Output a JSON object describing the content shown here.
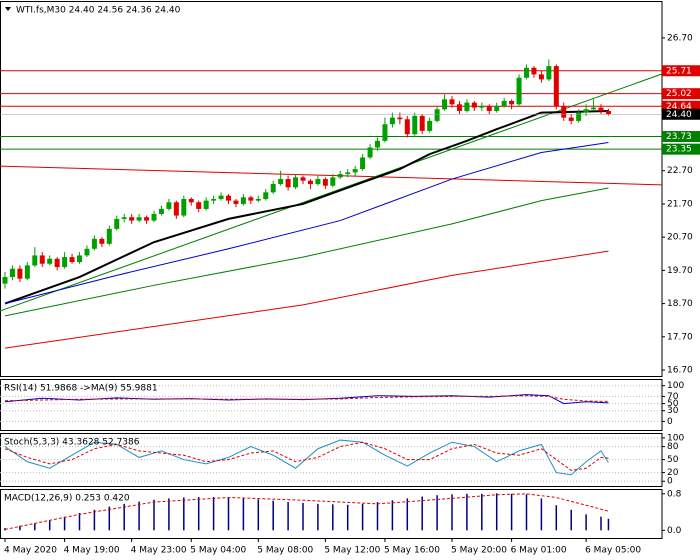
{
  "chart_data": [
    {
      "type": "candlestick",
      "title": "WTI.fs,M30  24.40 24.56 24.36 24.40",
      "categories": [
        "4 May 2020",
        null,
        null,
        null,
        null,
        null,
        null,
        null,
        "4 May 19:00",
        null,
        null,
        null,
        null,
        null,
        null,
        null,
        null,
        "4 May 23:00",
        null,
        null,
        null,
        null,
        null,
        null,
        null,
        "5 May 04:00",
        null,
        null,
        null,
        null,
        null,
        null,
        null,
        null,
        "5 May 08:00",
        null,
        null,
        null,
        null,
        null,
        null,
        null,
        null,
        "5 May 12:00",
        null,
        null,
        null,
        null,
        null,
        null,
        null,
        "5 May 16:00",
        null,
        null,
        null,
        null,
        null,
        null,
        null,
        null,
        "5 May 20:00",
        null,
        null,
        null,
        null,
        null,
        null,
        null,
        "6 May 01:00",
        null,
        null,
        null,
        null,
        null,
        null,
        null,
        null,
        null,
        "6 May 05:00",
        null,
        null,
        null
      ],
      "candles": [
        [
          19.3,
          19.65,
          19.15,
          19.5
        ],
        [
          19.5,
          19.85,
          19.4,
          19.75
        ],
        [
          19.75,
          19.85,
          19.35,
          19.45
        ],
        [
          19.45,
          19.95,
          19.4,
          19.85
        ],
        [
          19.85,
          20.4,
          19.8,
          20.15
        ],
        [
          20.15,
          20.25,
          19.8,
          19.9
        ],
        [
          19.9,
          20.15,
          19.85,
          20.05
        ],
        [
          20.05,
          20.1,
          19.7,
          19.8
        ],
        [
          19.8,
          20.25,
          19.75,
          20.1
        ],
        [
          20.1,
          20.2,
          19.9,
          19.95
        ],
        [
          19.95,
          20.25,
          19.9,
          20.15
        ],
        [
          20.15,
          20.45,
          20.1,
          20.35
        ],
        [
          20.35,
          20.75,
          20.3,
          20.65
        ],
        [
          20.65,
          20.7,
          20.4,
          20.5
        ],
        [
          20.5,
          21.05,
          20.45,
          20.95
        ],
        [
          20.95,
          21.35,
          20.9,
          21.25
        ],
        [
          21.25,
          21.4,
          21.15,
          21.3
        ],
        [
          21.3,
          21.4,
          21.1,
          21.2
        ],
        [
          21.2,
          21.4,
          21.15,
          21.3
        ],
        [
          21.3,
          21.35,
          21.1,
          21.2
        ],
        [
          21.2,
          21.5,
          21.15,
          21.4
        ],
        [
          21.4,
          21.65,
          21.35,
          21.55
        ],
        [
          21.55,
          21.85,
          21.5,
          21.75
        ],
        [
          21.75,
          21.8,
          21.25,
          21.35
        ],
        [
          21.35,
          21.95,
          21.3,
          21.85
        ],
        [
          21.85,
          21.9,
          21.65,
          21.75
        ],
        [
          21.75,
          21.8,
          21.45,
          21.55
        ],
        [
          21.55,
          21.9,
          21.5,
          21.8
        ],
        [
          21.8,
          21.95,
          21.7,
          21.85
        ],
        [
          21.85,
          22.05,
          21.8,
          21.95
        ],
        [
          21.95,
          22.0,
          21.7,
          21.8
        ],
        [
          21.8,
          21.85,
          21.6,
          21.7
        ],
        [
          21.7,
          22.0,
          21.65,
          21.9
        ],
        [
          21.9,
          21.95,
          21.7,
          21.8
        ],
        [
          21.8,
          21.95,
          21.75,
          21.85
        ],
        [
          21.85,
          22.15,
          21.8,
          22.05
        ],
        [
          22.05,
          22.4,
          22.0,
          22.3
        ],
        [
          22.3,
          22.7,
          22.25,
          22.45
        ],
        [
          22.45,
          22.55,
          22.1,
          22.2
        ],
        [
          22.2,
          22.6,
          22.15,
          22.5
        ],
        [
          22.5,
          22.55,
          22.3,
          22.4
        ],
        [
          22.4,
          22.45,
          22.15,
          22.3
        ],
        [
          22.3,
          22.55,
          22.25,
          22.45
        ],
        [
          22.45,
          22.5,
          22.15,
          22.25
        ],
        [
          22.25,
          22.6,
          22.2,
          22.5
        ],
        [
          22.5,
          22.7,
          22.45,
          22.6
        ],
        [
          22.6,
          22.75,
          22.5,
          22.65
        ],
        [
          22.65,
          22.85,
          22.55,
          22.75
        ],
        [
          22.75,
          23.2,
          22.7,
          23.1
        ],
        [
          23.1,
          23.5,
          23.05,
          23.4
        ],
        [
          23.4,
          23.7,
          23.3,
          23.6
        ],
        [
          23.6,
          24.3,
          23.55,
          24.1
        ],
        [
          24.1,
          24.45,
          24.0,
          24.3
        ],
        [
          24.3,
          24.45,
          24.1,
          24.25
        ],
        [
          24.25,
          24.35,
          23.7,
          23.8
        ],
        [
          23.8,
          24.45,
          23.75,
          24.35
        ],
        [
          24.35,
          24.4,
          23.8,
          23.9
        ],
        [
          23.9,
          24.3,
          23.85,
          24.2
        ],
        [
          24.2,
          24.65,
          24.15,
          24.55
        ],
        [
          24.55,
          25.0,
          24.5,
          24.85
        ],
        [
          24.85,
          24.95,
          24.6,
          24.7
        ],
        [
          24.7,
          24.8,
          24.4,
          24.5
        ],
        [
          24.5,
          24.85,
          24.45,
          24.75
        ],
        [
          24.75,
          24.8,
          24.5,
          24.6
        ],
        [
          24.6,
          24.75,
          24.5,
          24.65
        ],
        [
          24.65,
          24.7,
          24.4,
          24.5
        ],
        [
          24.5,
          24.75,
          24.45,
          24.65
        ],
        [
          24.65,
          24.9,
          24.6,
          24.8
        ],
        [
          24.8,
          24.85,
          24.55,
          24.7
        ],
        [
          24.7,
          25.6,
          24.65,
          25.5
        ],
        [
          25.5,
          25.9,
          25.45,
          25.8
        ],
        [
          25.8,
          25.85,
          25.5,
          25.6
        ],
        [
          25.6,
          25.7,
          25.35,
          25.45
        ],
        [
          25.45,
          26.05,
          25.4,
          25.85
        ],
        [
          25.85,
          25.9,
          24.55,
          24.65
        ],
        [
          24.65,
          24.75,
          24.2,
          24.3
        ],
        [
          24.3,
          24.4,
          24.1,
          24.2
        ],
        [
          24.2,
          24.55,
          24.15,
          24.45
        ],
        [
          24.45,
          24.7,
          24.35,
          24.55
        ],
        [
          24.55,
          24.85,
          24.5,
          24.6
        ],
        [
          24.6,
          24.7,
          24.4,
          24.5
        ],
        [
          24.5,
          24.56,
          24.36,
          24.4
        ]
      ],
      "up_color": "#00a000",
      "down_color": "#e00000",
      "ylim": [
        16.52,
        27.78
      ],
      "yticks": [
        {
          "value": 26.7,
          "label": "26.70"
        },
        {
          "value": 22.7,
          "label": "22.70"
        },
        {
          "value": 21.7,
          "label": "21.70"
        },
        {
          "value": 20.7,
          "label": "20.70"
        },
        {
          "value": 19.7,
          "label": "19.70"
        },
        {
          "value": 18.7,
          "label": "18.70"
        },
        {
          "value": 17.7,
          "label": "17.70"
        },
        {
          "value": 16.7,
          "label": "16.70"
        }
      ],
      "levels": [
        {
          "value": 25.71,
          "label": "25.71",
          "color": "#e00000"
        },
        {
          "value": 25.02,
          "label": "25.02",
          "color": "#e00000"
        },
        {
          "value": 24.64,
          "label": "24.64",
          "color": "#e00000"
        },
        {
          "value": 23.73,
          "label": "23.73",
          "color": "#008000"
        },
        {
          "value": 23.35,
          "label": "23.35",
          "color": "#008000"
        }
      ],
      "current_price": {
        "value": 24.4,
        "label": "24.40",
        "color": "#000000"
      },
      "moving_averages": [
        {
          "color": "#000000",
          "width": 2,
          "x": [
            0,
            10,
            20,
            30,
            40,
            48,
            53,
            57,
            62,
            66,
            72,
            81
          ],
          "values": [
            18.7,
            19.5,
            20.55,
            21.25,
            21.7,
            22.35,
            22.75,
            23.2,
            23.6,
            23.95,
            24.45,
            24.5
          ]
        },
        {
          "color": "#0000c8",
          "width": 1,
          "x": [
            0,
            15,
            30,
            45,
            60,
            72,
            81
          ],
          "values": [
            18.7,
            19.55,
            20.35,
            21.2,
            22.45,
            23.25,
            23.55
          ]
        },
        {
          "color": "#008000",
          "width": 1,
          "x": [
            0,
            20,
            40,
            60,
            72,
            81
          ],
          "values": [
            18.33,
            19.25,
            20.1,
            21.1,
            21.8,
            22.18
          ]
        },
        {
          "color": "#e00000",
          "width": 1,
          "x": [
            0,
            40,
            60,
            81
          ],
          "values": [
            17.36,
            18.66,
            19.55,
            20.28
          ]
        }
      ],
      "trendlines": [
        {
          "color": "#e00000",
          "x": [
            -1,
            89
          ],
          "values": [
            22.84,
            22.27
          ]
        },
        {
          "color": "#008000",
          "x": [
            -1,
            89
          ],
          "values": [
            18.45,
            25.68
          ]
        }
      ]
    },
    {
      "type": "line",
      "title": "RSI(14) 51.9868 ->MA(9) 55.9881",
      "ylim": [
        -24,
        116
      ],
      "yticks": [
        100,
        70,
        50,
        30,
        0
      ],
      "grid": true,
      "series": [
        {
          "color": "#0000c8",
          "dashed": false,
          "x": [
            0,
            5,
            10,
            15,
            20,
            25,
            30,
            35,
            40,
            45,
            50,
            55,
            60,
            65,
            70,
            73,
            75,
            78,
            81
          ],
          "values": [
            55,
            65,
            60,
            66,
            62,
            64,
            60,
            63,
            61,
            65,
            72,
            70,
            72,
            68,
            75,
            72,
            50,
            55,
            52
          ]
        },
        {
          "color": "#e00000",
          "dashed": true,
          "x": [
            0,
            5,
            10,
            15,
            20,
            25,
            30,
            35,
            40,
            45,
            50,
            55,
            60,
            65,
            70,
            73,
            75,
            78,
            81
          ],
          "values": [
            58,
            60,
            62,
            63,
            63,
            63,
            62,
            62,
            62,
            63,
            67,
            69,
            70,
            70,
            72,
            70,
            62,
            57,
            56
          ]
        }
      ]
    },
    {
      "type": "line",
      "title": "Stoch(5,3,3) 43.3628 52.7386",
      "ylim": [
        -11,
        109
      ],
      "yticks": [
        100,
        80,
        50,
        20,
        0
      ],
      "grid": true,
      "series": [
        {
          "color": "#1e90c8",
          "dashed": false,
          "x": [
            0,
            3,
            6,
            9,
            12,
            15,
            18,
            21,
            24,
            27,
            30,
            33,
            36,
            39,
            42,
            45,
            48,
            51,
            54,
            57,
            60,
            63,
            66,
            69,
            72,
            74,
            76,
            78,
            80,
            81
          ],
          "values": [
            80,
            45,
            30,
            60,
            90,
            85,
            55,
            70,
            50,
            40,
            55,
            80,
            60,
            30,
            75,
            95,
            90,
            60,
            35,
            65,
            90,
            80,
            45,
            70,
            85,
            20,
            15,
            45,
            70,
            43
          ]
        },
        {
          "color": "#e00000",
          "dashed": true,
          "x": [
            0,
            3,
            6,
            9,
            12,
            15,
            18,
            21,
            24,
            27,
            30,
            33,
            36,
            39,
            42,
            45,
            48,
            51,
            54,
            57,
            60,
            63,
            66,
            69,
            72,
            74,
            76,
            78,
            80,
            81
          ],
          "values": [
            75,
            55,
            40,
            50,
            75,
            85,
            70,
            65,
            60,
            45,
            50,
            65,
            70,
            45,
            55,
            80,
            90,
            75,
            50,
            50,
            75,
            85,
            65,
            60,
            75,
            50,
            25,
            30,
            55,
            53
          ]
        }
      ]
    },
    {
      "type": "macd",
      "title": "MACD(12,26,9) 0.253 0.420",
      "ylim": [
        -0.168,
        0.884
      ],
      "yticks": [
        0.8,
        {
          "value": 0,
          "label": "0.0"
        }
      ],
      "grid": false,
      "histogram": {
        "color": "#000080",
        "x": [
          0,
          2,
          4,
          6,
          8,
          10,
          12,
          14,
          16,
          18,
          20,
          22,
          24,
          26,
          28,
          30,
          32,
          34,
          36,
          38,
          40,
          42,
          44,
          46,
          48,
          50,
          52,
          54,
          56,
          58,
          60,
          62,
          64,
          66,
          68,
          70,
          72,
          74,
          76,
          78,
          80,
          81
        ],
        "values": [
          0.05,
          0.1,
          0.15,
          0.22,
          0.3,
          0.38,
          0.45,
          0.52,
          0.58,
          0.63,
          0.67,
          0.7,
          0.72,
          0.73,
          0.73,
          0.72,
          0.7,
          0.68,
          0.65,
          0.62,
          0.6,
          0.58,
          0.57,
          0.56,
          0.58,
          0.62,
          0.66,
          0.7,
          0.74,
          0.77,
          0.79,
          0.8,
          0.8,
          0.81,
          0.8,
          0.79,
          0.7,
          0.55,
          0.45,
          0.35,
          0.3,
          0.253
        ]
      },
      "signal": {
        "color": "#e00000",
        "x": [
          0,
          10,
          20,
          30,
          40,
          50,
          60,
          66,
          70,
          74,
          78,
          81
        ],
        "values": [
          0.02,
          0.35,
          0.62,
          0.72,
          0.66,
          0.58,
          0.7,
          0.78,
          0.8,
          0.72,
          0.55,
          0.42
        ]
      }
    }
  ]
}
